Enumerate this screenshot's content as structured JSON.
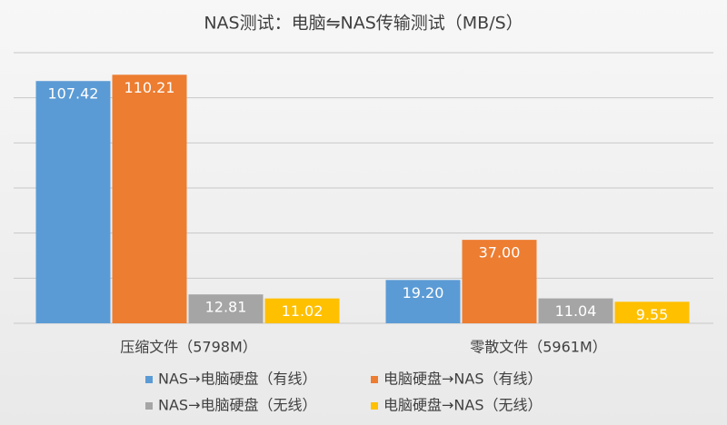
{
  "chart_data": {
    "type": "bar",
    "title": "NAS测试：电脑⇋NAS传输测试（MB/S）",
    "categories": [
      "压缩文件（5798M）",
      "零散文件（5961M）"
    ],
    "series": [
      {
        "name": "NAS→电脑硬盘（有线）",
        "color": "#5b9bd5",
        "values": [
          107.42,
          19.2
        ],
        "value_labels": [
          "107.42",
          "19.20"
        ]
      },
      {
        "name": "电脑硬盘→NAS（有线）",
        "color": "#ed7d31",
        "values": [
          110.21,
          37
        ],
        "value_labels": [
          "110.21",
          "37.00"
        ]
      },
      {
        "name": "NAS→电脑硬盘（无线）",
        "color": "#a5a5a5",
        "values": [
          12.81,
          11.04
        ],
        "value_labels": [
          "12.81",
          "11.04"
        ]
      },
      {
        "name": "电脑硬盘→NAS（无线）",
        "color": "#ffc000",
        "values": [
          11.02,
          9.55
        ],
        "value_labels": [
          "11.02",
          "9.55"
        ]
      }
    ],
    "ylim": [
      0,
      120
    ],
    "yticks": [
      0,
      20,
      40,
      60,
      80,
      100,
      120
    ],
    "grid": true,
    "legend": "bottom"
  }
}
